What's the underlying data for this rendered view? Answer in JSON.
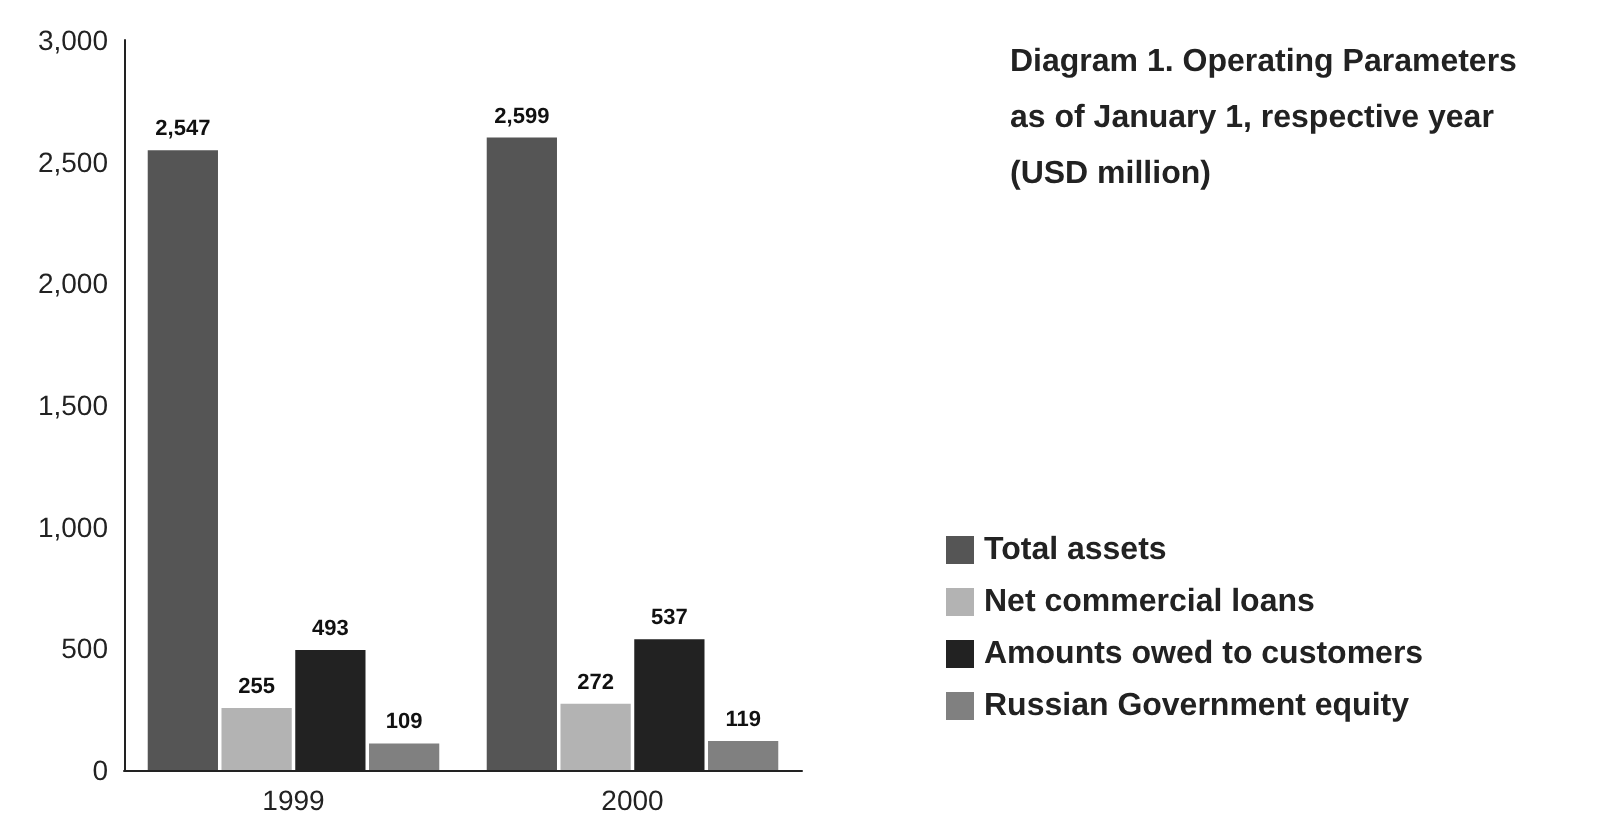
{
  "chart_data": {
    "type": "bar",
    "title": "Diagram 1. Operating Parameters as of January 1, respective year (USD million)",
    "categories": [
      "1999",
      "2000"
    ],
    "series": [
      {
        "name": "Total assets",
        "color": "#555555",
        "values": [
          2547,
          2599
        ],
        "value_labels": [
          "2,547",
          "2,599"
        ]
      },
      {
        "name": "Net commercial loans",
        "color": "#b3b3b3",
        "values": [
          255,
          272
        ],
        "value_labels": [
          "255",
          "272"
        ]
      },
      {
        "name": "Amounts owed to customers",
        "color": "#222222",
        "values": [
          493,
          537
        ],
        "value_labels": [
          "493",
          "537"
        ]
      },
      {
        "name": "Russian Government equity",
        "color": "#808080",
        "values": [
          109,
          119
        ],
        "value_labels": [
          "109",
          "119"
        ]
      }
    ],
    "ylim": [
      0,
      3000
    ],
    "yticks": [
      0,
      500,
      {
        "value": 1000,
        "label": "1,000"
      },
      {
        "value": 1500,
        "label": "1,500"
      },
      {
        "value": 2000,
        "label": "2,000"
      },
      {
        "value": 2500,
        "label": "2,500"
      },
      {
        "value": 3000,
        "label": "3,000"
      }
    ],
    "grid": false,
    "legend": "right"
  }
}
